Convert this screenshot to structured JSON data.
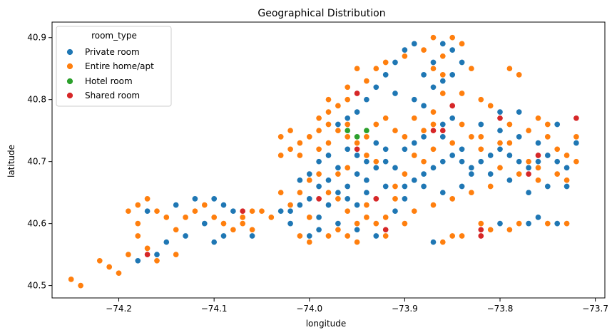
{
  "chart_data": {
    "type": "scatter",
    "title": "Geographical Distribution",
    "xlabel": "longitude",
    "ylabel": "latitude",
    "xlim": [
      -74.27,
      -73.69
    ],
    "ylim": [
      40.48,
      40.925
    ],
    "xticks": [
      -74.2,
      -74.1,
      -74.0,
      -73.9,
      -73.8,
      -73.7
    ],
    "xtick_labels": [
      "−74.2",
      "−74.1",
      "−74.0",
      "−73.9",
      "−73.8",
      "−73.7"
    ],
    "yticks": [
      40.5,
      40.6,
      40.7,
      40.8,
      40.9
    ],
    "ytick_labels": [
      "40.5",
      "40.6",
      "40.7",
      "40.8",
      "40.9"
    ],
    "grid": false,
    "legend": {
      "title": "room_type",
      "placement": "top-left",
      "entries": [
        {
          "label": "Private room",
          "color": "#1f77b4"
        },
        {
          "label": "Entire home/apt",
          "color": "#ff7f0e"
        },
        {
          "label": "Hotel room",
          "color": "#2ca02c"
        },
        {
          "label": "Shared room",
          "color": "#d62728"
        }
      ]
    },
    "series": [
      {
        "name": "Private room",
        "color": "#1f77b4",
        "points": [
          [
            -73.95,
            40.78
          ],
          [
            -73.96,
            40.77
          ],
          [
            -73.94,
            40.8
          ],
          [
            -73.93,
            40.82
          ],
          [
            -73.92,
            40.84
          ],
          [
            -73.91,
            40.86
          ],
          [
            -73.9,
            40.88
          ],
          [
            -73.89,
            40.89
          ],
          [
            -73.86,
            40.89
          ],
          [
            -73.85,
            40.88
          ],
          [
            -73.87,
            40.86
          ],
          [
            -73.88,
            40.84
          ],
          [
            -73.86,
            40.83
          ],
          [
            -73.84,
            40.86
          ],
          [
            -73.85,
            40.84
          ],
          [
            -73.87,
            40.82
          ],
          [
            -73.96,
            40.72
          ],
          [
            -73.95,
            40.71
          ],
          [
            -73.94,
            40.7
          ],
          [
            -73.93,
            40.69
          ],
          [
            -73.92,
            40.7
          ],
          [
            -73.91,
            40.69
          ],
          [
            -73.95,
            40.68
          ],
          [
            -73.97,
            40.69
          ],
          [
            -73.98,
            40.67
          ],
          [
            -73.99,
            40.66
          ],
          [
            -73.97,
            40.65
          ],
          [
            -73.96,
            40.64
          ],
          [
            -73.94,
            40.65
          ],
          [
            -73.93,
            40.64
          ],
          [
            -73.95,
            40.63
          ],
          [
            -73.98,
            40.63
          ],
          [
            -74.0,
            40.64
          ],
          [
            -74.01,
            40.63
          ],
          [
            -74.02,
            40.62
          ],
          [
            -74.03,
            40.62
          ],
          [
            -73.99,
            40.61
          ],
          [
            -73.97,
            40.6
          ],
          [
            -73.95,
            40.59
          ],
          [
            -73.93,
            40.58
          ],
          [
            -73.9,
            40.66
          ],
          [
            -73.89,
            40.67
          ],
          [
            -73.88,
            40.68
          ],
          [
            -73.87,
            40.69
          ],
          [
            -73.86,
            40.7
          ],
          [
            -73.85,
            40.71
          ],
          [
            -73.84,
            40.7
          ],
          [
            -73.83,
            40.69
          ],
          [
            -73.82,
            40.7
          ],
          [
            -73.81,
            40.71
          ],
          [
            -73.8,
            40.72
          ],
          [
            -73.79,
            40.71
          ],
          [
            -73.78,
            40.7
          ],
          [
            -73.77,
            40.69
          ],
          [
            -73.76,
            40.7
          ],
          [
            -73.75,
            40.71
          ],
          [
            -73.74,
            40.7
          ],
          [
            -73.73,
            40.69
          ],
          [
            -73.8,
            40.75
          ],
          [
            -73.82,
            40.76
          ],
          [
            -73.78,
            40.74
          ],
          [
            -73.76,
            40.73
          ],
          [
            -73.84,
            40.72
          ],
          [
            -73.86,
            40.74
          ],
          [
            -73.88,
            40.66
          ],
          [
            -73.86,
            40.65
          ],
          [
            -73.84,
            40.66
          ],
          [
            -73.83,
            40.68
          ],
          [
            -73.81,
            40.68
          ],
          [
            -73.79,
            40.67
          ],
          [
            -73.9,
            40.64
          ],
          [
            -73.91,
            40.62
          ],
          [
            -74.17,
            40.62
          ],
          [
            -74.14,
            40.63
          ],
          [
            -74.12,
            40.64
          ],
          [
            -74.1,
            40.64
          ],
          [
            -74.09,
            40.63
          ],
          [
            -74.08,
            40.62
          ],
          [
            -74.11,
            40.6
          ],
          [
            -74.13,
            40.58
          ],
          [
            -74.15,
            40.57
          ],
          [
            -74.09,
            40.58
          ],
          [
            -74.1,
            40.57
          ],
          [
            -73.82,
            40.59
          ],
          [
            -73.8,
            40.6
          ],
          [
            -73.77,
            40.6
          ],
          [
            -73.76,
            40.61
          ],
          [
            -73.74,
            40.6
          ],
          [
            -73.87,
            40.57
          ],
          [
            -73.99,
            40.59
          ],
          [
            -74.0,
            40.58
          ],
          [
            -74.02,
            40.6
          ],
          [
            -73.89,
            40.8
          ],
          [
            -73.88,
            40.79
          ],
          [
            -73.91,
            40.81
          ],
          [
            -73.97,
            40.76
          ],
          [
            -73.93,
            40.73
          ],
          [
            -73.92,
            40.72
          ],
          [
            -73.9,
            40.72
          ],
          [
            -73.89,
            40.73
          ],
          [
            -73.88,
            40.74
          ],
          [
            -73.86,
            40.76
          ],
          [
            -73.85,
            40.77
          ],
          [
            -73.8,
            40.78
          ],
          [
            -73.78,
            40.78
          ],
          [
            -73.74,
            40.76
          ],
          [
            -73.72,
            40.73
          ],
          [
            -73.73,
            40.66
          ],
          [
            -73.75,
            40.66
          ],
          [
            -73.77,
            40.65
          ],
          [
            -74.16,
            40.55
          ],
          [
            -74.18,
            40.54
          ],
          [
            -74.06,
            40.58
          ],
          [
            -73.98,
            40.71
          ],
          [
            -73.99,
            40.7
          ],
          [
            -74.0,
            40.68
          ],
          [
            -74.01,
            40.67
          ],
          [
            -73.96,
            40.66
          ],
          [
            -73.94,
            40.67
          ],
          [
            -73.92,
            40.66
          ]
        ]
      },
      {
        "name": "Entire home/apt",
        "color": "#ff7f0e",
        "points": [
          [
            -73.99,
            40.75
          ],
          [
            -73.98,
            40.76
          ],
          [
            -74.0,
            40.74
          ],
          [
            -74.01,
            40.73
          ],
          [
            -73.99,
            40.72
          ],
          [
            -74.01,
            40.71
          ],
          [
            -73.98,
            40.73
          ],
          [
            -73.97,
            40.75
          ],
          [
            -73.98,
            40.78
          ],
          [
            -73.97,
            40.79
          ],
          [
            -73.96,
            40.8
          ],
          [
            -73.95,
            40.81
          ],
          [
            -73.94,
            40.83
          ],
          [
            -73.93,
            40.85
          ],
          [
            -73.92,
            40.86
          ],
          [
            -73.9,
            40.87
          ],
          [
            -73.86,
            40.87
          ],
          [
            -73.85,
            40.9
          ],
          [
            -73.84,
            40.89
          ],
          [
            -73.88,
            40.88
          ],
          [
            -73.87,
            40.85
          ],
          [
            -73.86,
            40.84
          ],
          [
            -73.83,
            40.85
          ],
          [
            -73.86,
            40.81
          ],
          [
            -74.02,
            40.72
          ],
          [
            -74.03,
            40.74
          ],
          [
            -74.02,
            40.75
          ],
          [
            -74.03,
            40.71
          ],
          [
            -73.96,
            40.74
          ],
          [
            -73.95,
            40.73
          ],
          [
            -73.94,
            40.71
          ],
          [
            -73.93,
            40.7
          ],
          [
            -73.96,
            40.69
          ],
          [
            -73.97,
            40.68
          ],
          [
            -73.99,
            40.68
          ],
          [
            -74.0,
            40.67
          ],
          [
            -73.98,
            40.65
          ],
          [
            -73.97,
            40.64
          ],
          [
            -73.96,
            40.62
          ],
          [
            -73.94,
            40.61
          ],
          [
            -73.95,
            40.6
          ],
          [
            -73.93,
            40.6
          ],
          [
            -73.92,
            40.59
          ],
          [
            -73.96,
            40.58
          ],
          [
            -73.98,
            40.58
          ],
          [
            -74.0,
            40.57
          ],
          [
            -73.95,
            40.57
          ],
          [
            -73.97,
            40.59
          ],
          [
            -74.02,
            40.63
          ],
          [
            -74.03,
            40.65
          ],
          [
            -74.01,
            40.65
          ],
          [
            -74.0,
            40.61
          ],
          [
            -73.91,
            40.66
          ],
          [
            -73.9,
            40.68
          ],
          [
            -73.88,
            40.7
          ],
          [
            -73.87,
            40.72
          ],
          [
            -73.88,
            40.75
          ],
          [
            -73.87,
            40.76
          ],
          [
            -73.86,
            40.75
          ],
          [
            -73.85,
            40.73
          ],
          [
            -73.83,
            40.74
          ],
          [
            -73.82,
            40.72
          ],
          [
            -73.8,
            40.73
          ],
          [
            -73.79,
            40.76
          ],
          [
            -73.77,
            40.75
          ],
          [
            -73.75,
            40.74
          ],
          [
            -73.74,
            40.72
          ],
          [
            -73.73,
            40.71
          ],
          [
            -73.72,
            40.7
          ],
          [
            -73.74,
            40.68
          ],
          [
            -73.76,
            40.67
          ],
          [
            -73.78,
            40.68
          ],
          [
            -73.8,
            40.69
          ],
          [
            -73.81,
            40.66
          ],
          [
            -73.83,
            40.65
          ],
          [
            -73.85,
            40.64
          ],
          [
            -73.87,
            40.63
          ],
          [
            -73.89,
            40.62
          ],
          [
            -73.92,
            40.61
          ],
          [
            -73.79,
            40.85
          ],
          [
            -73.78,
            40.84
          ],
          [
            -73.84,
            40.81
          ],
          [
            -73.82,
            40.8
          ],
          [
            -73.81,
            40.79
          ],
          [
            -73.77,
            40.7
          ],
          [
            -73.76,
            40.69
          ],
          [
            -73.73,
            40.67
          ],
          [
            -73.72,
            40.74
          ],
          [
            -74.25,
            40.51
          ],
          [
            -74.24,
            40.5
          ],
          [
            -74.22,
            40.54
          ],
          [
            -74.21,
            40.53
          ],
          [
            -74.2,
            40.52
          ],
          [
            -74.19,
            40.55
          ],
          [
            -74.18,
            40.6
          ],
          [
            -74.17,
            40.56
          ],
          [
            -74.17,
            40.64
          ],
          [
            -74.16,
            40.62
          ],
          [
            -74.15,
            40.61
          ],
          [
            -74.14,
            40.59
          ],
          [
            -74.13,
            40.61
          ],
          [
            -74.12,
            40.62
          ],
          [
            -74.11,
            40.63
          ],
          [
            -74.1,
            40.61
          ],
          [
            -74.09,
            40.6
          ],
          [
            -74.08,
            40.59
          ],
          [
            -74.07,
            40.61
          ],
          [
            -74.06,
            40.62
          ],
          [
            -74.07,
            40.6
          ],
          [
            -74.06,
            40.59
          ],
          [
            -74.14,
            40.55
          ],
          [
            -74.16,
            40.54
          ],
          [
            -74.19,
            40.62
          ],
          [
            -74.18,
            40.63
          ],
          [
            -74.18,
            40.58
          ],
          [
            -73.82,
            40.6
          ],
          [
            -73.79,
            40.59
          ],
          [
            -73.81,
            40.59
          ],
          [
            -73.78,
            40.6
          ],
          [
            -73.75,
            40.6
          ],
          [
            -73.73,
            40.6
          ],
          [
            -73.86,
            40.57
          ],
          [
            -73.84,
            40.58
          ],
          [
            -73.85,
            40.58
          ],
          [
            -73.99,
            40.77
          ],
          [
            -73.98,
            40.8
          ],
          [
            -73.96,
            40.82
          ],
          [
            -73.95,
            40.85
          ],
          [
            -73.89,
            40.77
          ],
          [
            -73.87,
            40.78
          ],
          [
            -73.85,
            40.79
          ],
          [
            -73.84,
            40.76
          ],
          [
            -73.82,
            40.74
          ],
          [
            -73.8,
            40.77
          ],
          [
            -73.76,
            40.77
          ],
          [
            -73.75,
            40.76
          ],
          [
            -73.79,
            40.73
          ],
          [
            -73.93,
            40.76
          ],
          [
            -73.92,
            40.77
          ],
          [
            -73.91,
            40.75
          ],
          [
            -73.9,
            40.74
          ],
          [
            -73.89,
            40.71
          ],
          [
            -73.94,
            40.74
          ],
          [
            -73.96,
            40.76
          ],
          [
            -74.04,
            40.61
          ],
          [
            -74.05,
            40.62
          ],
          [
            -73.91,
            40.64
          ],
          [
            -73.94,
            40.63
          ],
          [
            -73.92,
            40.58
          ],
          [
            -73.9,
            40.6
          ],
          [
            -74.01,
            40.58
          ],
          [
            -73.87,
            40.9
          ]
        ]
      },
      {
        "name": "Hotel room",
        "color": "#2ca02c",
        "points": [
          [
            -73.95,
            40.74
          ],
          [
            -73.94,
            40.75
          ],
          [
            -73.96,
            40.75
          ]
        ]
      },
      {
        "name": "Shared room",
        "color": "#d62728",
        "points": [
          [
            -73.95,
            40.81
          ],
          [
            -73.93,
            40.64
          ],
          [
            -73.92,
            40.59
          ],
          [
            -73.99,
            40.64
          ],
          [
            -74.07,
            40.62
          ],
          [
            -74.17,
            40.55
          ],
          [
            -73.87,
            40.75
          ],
          [
            -73.86,
            40.75
          ],
          [
            -73.8,
            40.77
          ],
          [
            -73.76,
            40.71
          ],
          [
            -73.77,
            40.68
          ],
          [
            -73.82,
            40.59
          ],
          [
            -73.72,
            40.77
          ],
          [
            -73.95,
            40.72
          ],
          [
            -73.85,
            40.79
          ],
          [
            -73.82,
            40.58
          ]
        ]
      }
    ]
  }
}
